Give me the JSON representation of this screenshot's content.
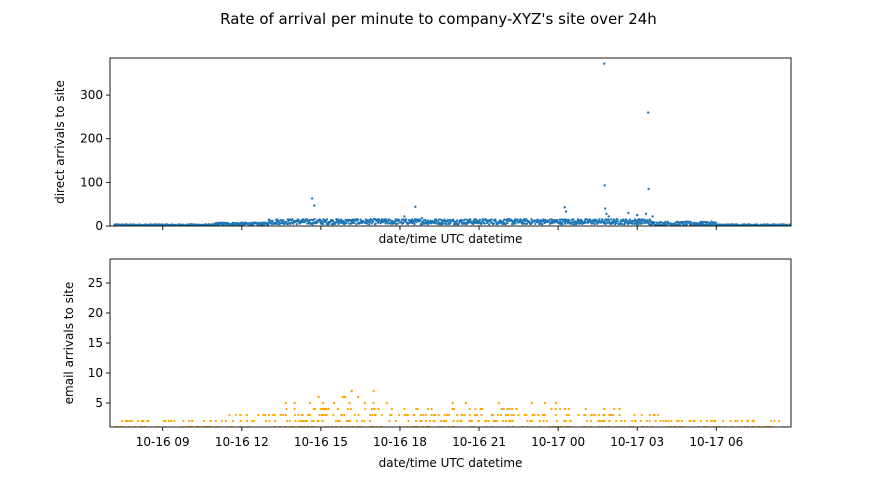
{
  "figure": {
    "title": "Rate of arrival per minute to company-XYZ's site over 24h"
  },
  "chart_data": [
    {
      "type": "scatter",
      "name": "direct",
      "title": "",
      "xlabel": "date/time UTC datetime",
      "ylabel": "direct arrivals to site",
      "xlim": [
        "2016-10-16 07:00",
        "2016-10-17 08:50"
      ],
      "ylim": [
        0,
        385
      ],
      "yticks": [
        0,
        100,
        200,
        300
      ],
      "xtick_labels_visible": false,
      "color": "#1f77b4",
      "grid": false,
      "baseline_bands": [
        {
          "from": "2016-10-16 07:10",
          "to": "2016-10-16 11:00",
          "low": 0,
          "high": 4
        },
        {
          "from": "2016-10-16 11:00",
          "to": "2016-10-16 13:00",
          "low": 2,
          "high": 8
        },
        {
          "from": "2016-10-16 13:00",
          "to": "2016-10-17 03:30",
          "low": 4,
          "high": 16
        },
        {
          "from": "2016-10-17 03:30",
          "to": "2016-10-17 06:00",
          "low": 1,
          "high": 10
        },
        {
          "from": "2016-10-17 06:00",
          "to": "2016-10-17 08:50",
          "low": 0,
          "high": 4
        }
      ],
      "points": [
        [
          "2016-10-16 14:40",
          63
        ],
        [
          "2016-10-16 14:45",
          47
        ],
        [
          "2016-10-16 18:35",
          44
        ],
        [
          "2016-10-16 18:10",
          22
        ],
        [
          "2016-10-16 18:50",
          18
        ],
        [
          "2016-10-17 00:15",
          43
        ],
        [
          "2016-10-17 00:18",
          33
        ],
        [
          "2016-10-17 01:45",
          372
        ],
        [
          "2016-10-17 01:46",
          93
        ],
        [
          "2016-10-17 01:47",
          40
        ],
        [
          "2016-10-17 01:50",
          28
        ],
        [
          "2016-10-17 01:55",
          22
        ],
        [
          "2016-10-17 02:40",
          30
        ],
        [
          "2016-10-17 03:00",
          25
        ],
        [
          "2016-10-17 03:20",
          28
        ],
        [
          "2016-10-17 03:25",
          260
        ],
        [
          "2016-10-17 03:26",
          85
        ],
        [
          "2016-10-17 03:35",
          22
        ]
      ]
    },
    {
      "type": "scatter",
      "name": "email",
      "title": "",
      "xlabel": "date/time UTC datetime",
      "ylabel": "email arrivals to site",
      "xlim": [
        "2016-10-16 07:00",
        "2016-10-17 08:50"
      ],
      "ylim": [
        1,
        29
      ],
      "yticks": [
        5,
        10,
        15,
        20,
        25
      ],
      "xticks": [
        "2016-10-16 09:00",
        "2016-10-16 12:00",
        "2016-10-16 15:00",
        "2016-10-16 18:00",
        "2016-10-16 21:00",
        "2016-10-17 00:00",
        "2016-10-17 03:00",
        "2016-10-17 06:00"
      ],
      "xtick_labels": [
        "10-16 09",
        "10-16 12",
        "10-16 15",
        "10-16 18",
        "10-16 21",
        "10-17 00",
        "10-17 03",
        "10-17 06"
      ],
      "color": "#ffa500",
      "grid": false,
      "levels": [
        {
          "value": 1,
          "from": "2016-10-16 07:10",
          "to": "2016-10-17 08:50",
          "count": 160
        },
        {
          "value": 2,
          "from": "2016-10-16 07:10",
          "to": "2016-10-17 08:45",
          "count": 170
        },
        {
          "value": 3,
          "from": "2016-10-16 11:30",
          "to": "2016-10-17 03:50",
          "count": 110
        },
        {
          "value": 4,
          "from": "2016-10-16 13:30",
          "to": "2016-10-17 03:30",
          "count": 45
        }
      ],
      "points": [
        [
          "2016-10-16 13:40",
          5
        ],
        [
          "2016-10-16 14:00",
          5
        ],
        [
          "2016-10-16 14:35",
          5
        ],
        [
          "2016-10-16 14:55",
          6
        ],
        [
          "2016-10-16 15:05",
          5
        ],
        [
          "2016-10-16 15:30",
          5
        ],
        [
          "2016-10-16 15:50",
          6
        ],
        [
          "2016-10-16 15:55",
          6
        ],
        [
          "2016-10-16 16:05",
          5
        ],
        [
          "2016-10-16 16:10",
          7
        ],
        [
          "2016-10-16 16:25",
          6
        ],
        [
          "2016-10-16 16:40",
          5
        ],
        [
          "2016-10-16 17:00",
          7
        ],
        [
          "2016-10-16 17:00",
          5
        ],
        [
          "2016-10-16 17:30",
          5
        ],
        [
          "2016-10-16 20:00",
          5
        ],
        [
          "2016-10-16 20:30",
          5
        ],
        [
          "2016-10-16 21:45",
          5
        ],
        [
          "2016-10-16 23:00",
          5
        ],
        [
          "2016-10-16 23:30",
          5
        ],
        [
          "2016-10-16 23:45",
          4
        ],
        [
          "2016-10-16 23:55",
          5
        ],
        [
          "2016-10-17 01:45",
          4
        ],
        [
          "2016-10-17 02:20",
          4
        ]
      ]
    }
  ]
}
